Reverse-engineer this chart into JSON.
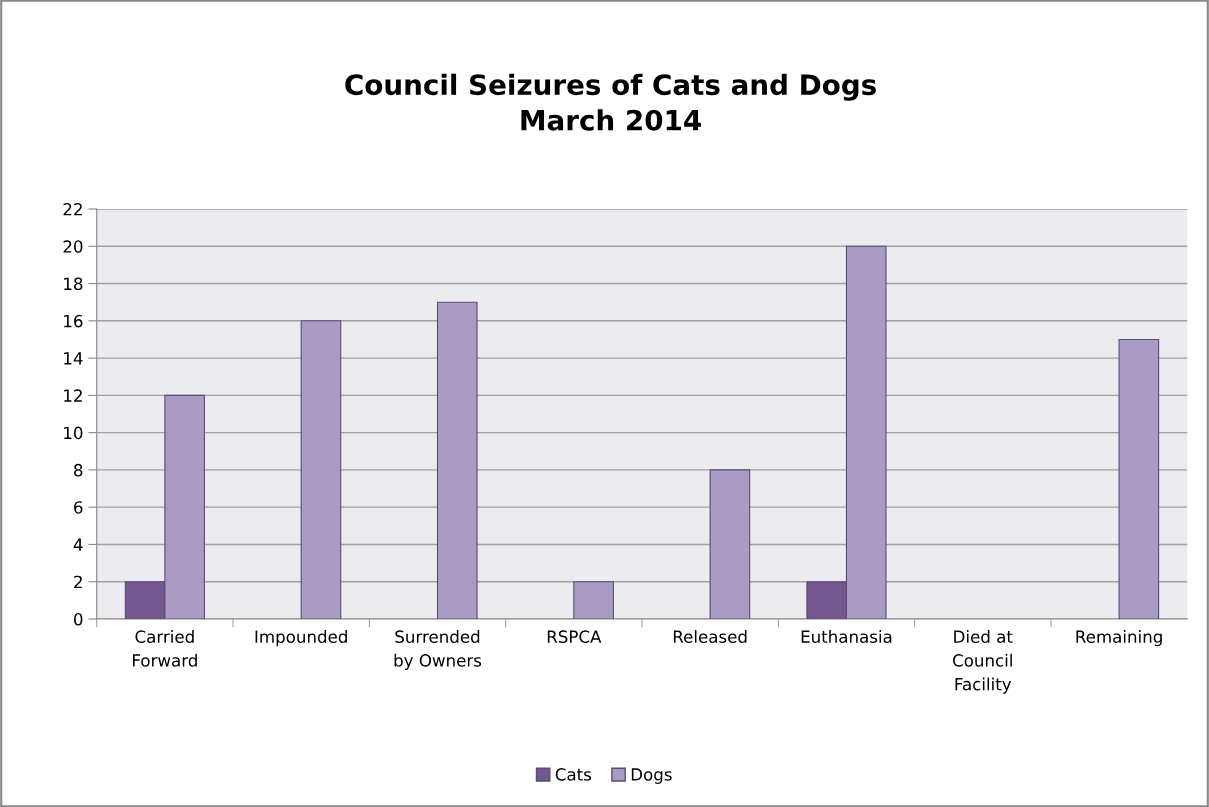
{
  "chart_data": {
    "type": "bar",
    "title": "Council Seizures of Cats and Dogs\nMarch 2014",
    "categories": [
      "Carried\nForward",
      "Impounded",
      "Surrended\nby Owners",
      "RSPCA",
      "Released",
      "Euthanasia",
      "Died at\nCouncil\nFacility",
      "Remaining"
    ],
    "series": [
      {
        "name": "Cats",
        "color": "#73578f",
        "values": [
          2,
          0,
          0,
          0,
          0,
          2,
          0,
          0
        ]
      },
      {
        "name": "Dogs",
        "color": "#a99bc1",
        "values": [
          12,
          16,
          17,
          2,
          8,
          20,
          0,
          15
        ]
      }
    ],
    "ylim": [
      0,
      22
    ],
    "yticks": [
      0,
      2,
      4,
      6,
      8,
      10,
      12,
      14,
      16,
      18,
      20,
      22
    ],
    "grid": "y",
    "legend": "bottom"
  }
}
